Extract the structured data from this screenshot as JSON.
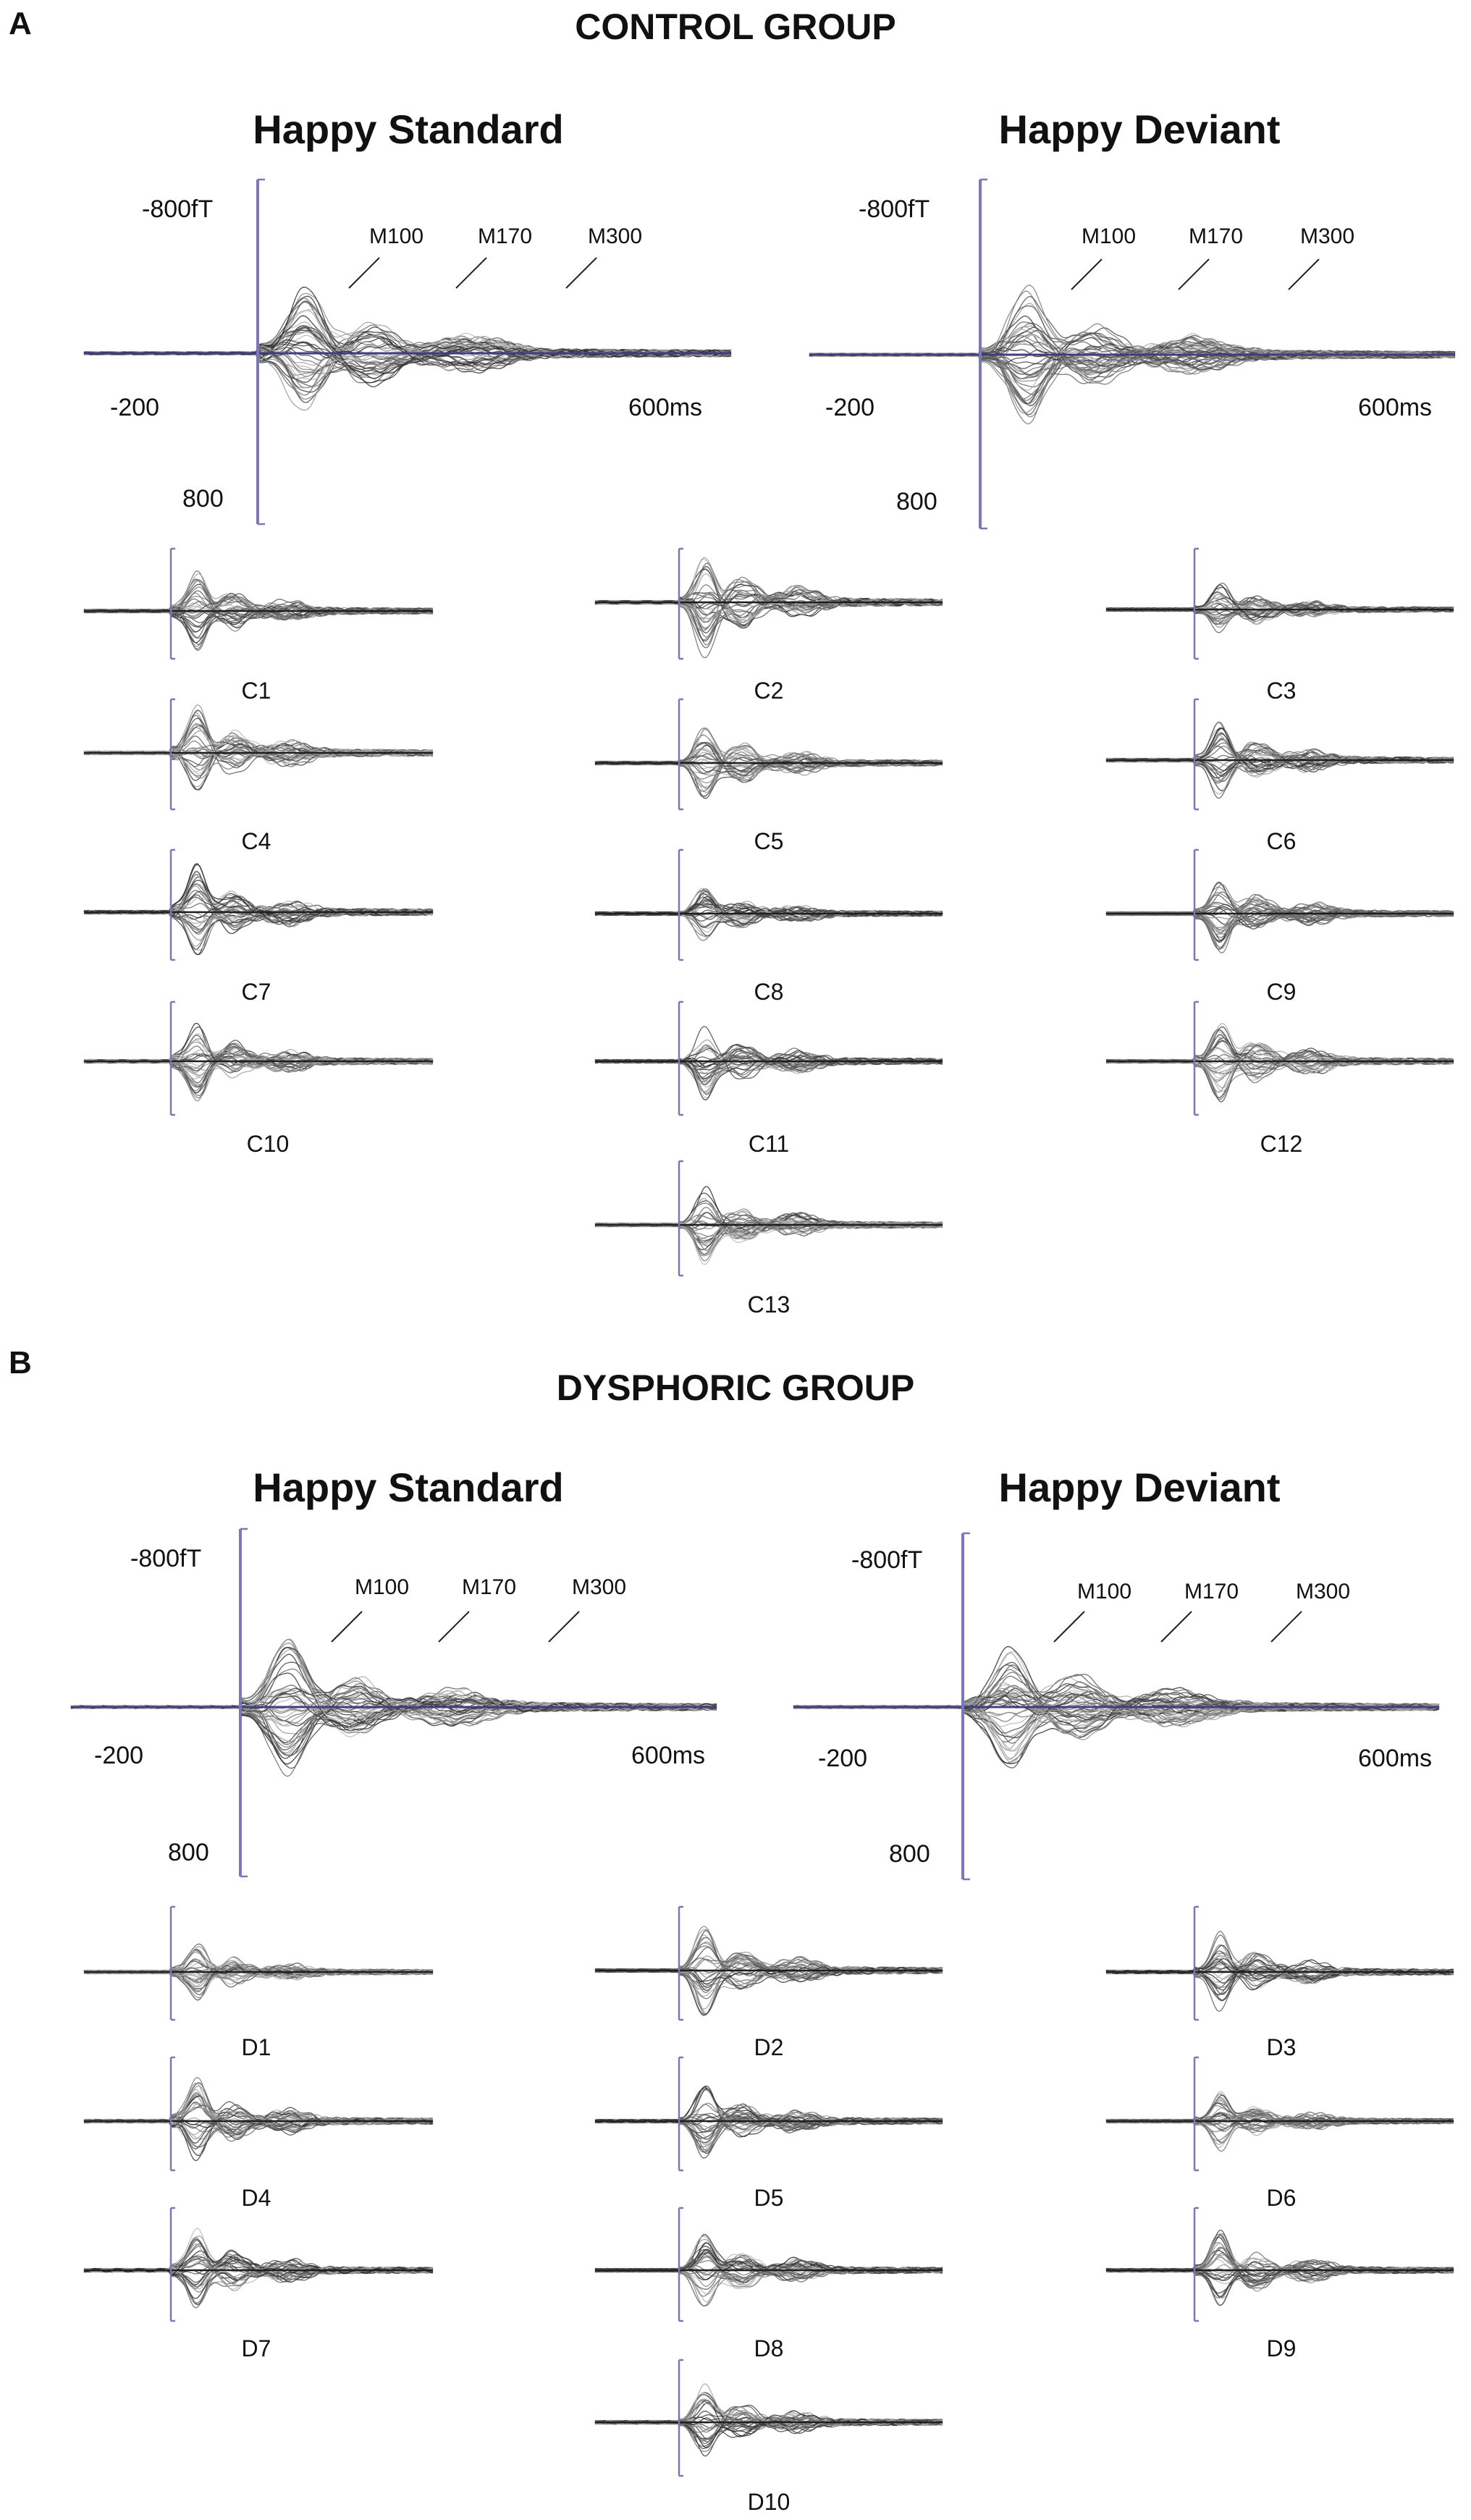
{
  "figure": {
    "panels": [
      {
        "letter": "A",
        "title": "CONTROL GROUP",
        "prefix": "C",
        "main_plots": [
          {
            "title": "Happy Standard",
            "y_top": "-800fT",
            "y_bottom": "800",
            "x_left": "-200",
            "x_right": "600ms",
            "components": [
              "M100",
              "M170",
              "M300"
            ]
          },
          {
            "title": "Happy Deviant",
            "y_top": "-800fT",
            "y_bottom": "800",
            "x_left": "-200",
            "x_right": "600ms",
            "components": [
              "M100",
              "M170",
              "M300"
            ]
          }
        ],
        "subplots": [
          "C1",
          "C2",
          "C3",
          "C4",
          "C5",
          "C6",
          "C7",
          "C8",
          "C9",
          "C10",
          "C11",
          "C12",
          "C13"
        ]
      },
      {
        "letter": "B",
        "title": "DYSPHORIC GROUP",
        "prefix": "D",
        "main_plots": [
          {
            "title": "Happy Standard",
            "y_top": "-800fT",
            "y_bottom": "800",
            "x_left": "-200",
            "x_right": "600ms",
            "components": [
              "M100",
              "M170",
              "M300"
            ]
          },
          {
            "title": "Happy Deviant",
            "y_top": "-800fT",
            "y_bottom": "800",
            "x_left": "-200",
            "x_right": "600ms",
            "components": [
              "M100",
              "M170",
              "M300"
            ]
          }
        ],
        "subplots": [
          "D1",
          "D2",
          "D3",
          "D4",
          "D5",
          "D6",
          "D7",
          "D8",
          "D9",
          "D10"
        ]
      }
    ],
    "colors": {
      "axis": "#7a78b8",
      "trace": "#1e1e1e",
      "baseline": "#3f3f80"
    }
  }
}
